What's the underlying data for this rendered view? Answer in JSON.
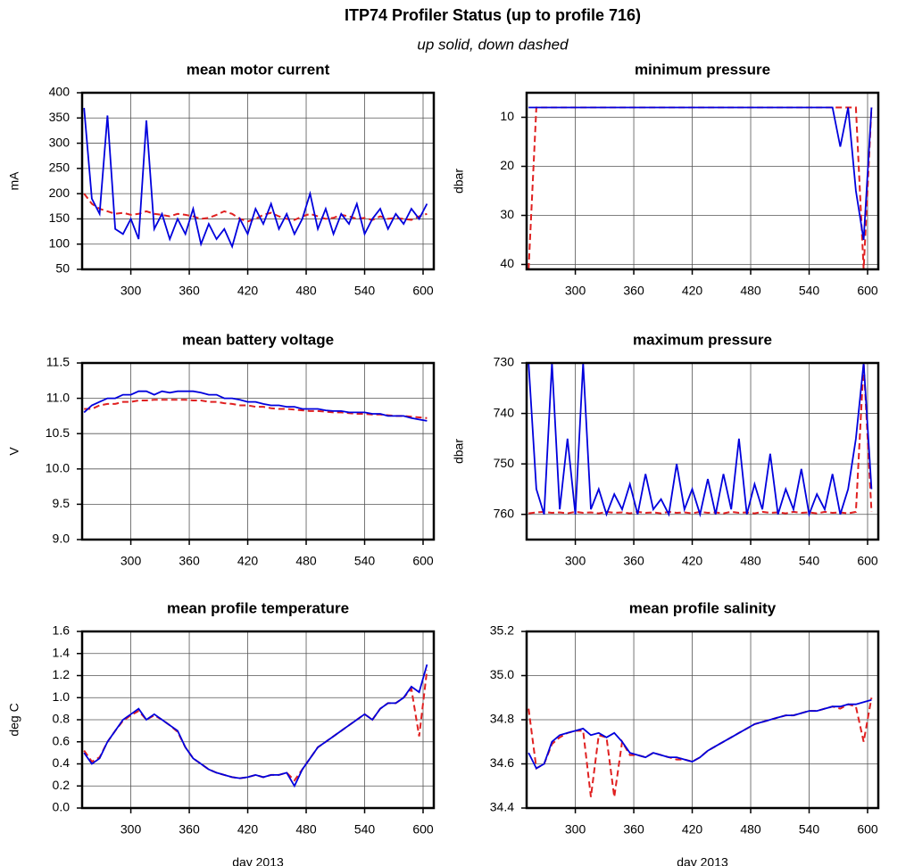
{
  "title": "ITP74 Profiler Status (up to profile 716)",
  "subtitle": "up solid, down dashed",
  "chart_data": [
    {
      "type": "line",
      "title": "mean motor current",
      "y_label": "mA",
      "x": [
        252,
        260,
        268,
        276,
        284,
        292,
        300,
        308,
        316,
        324,
        332,
        340,
        348,
        356,
        364,
        372,
        380,
        388,
        396,
        404,
        412,
        420,
        428,
        436,
        444,
        452,
        460,
        468,
        476,
        484,
        492,
        500,
        508,
        516,
        524,
        532,
        540,
        548,
        556,
        564,
        572,
        580,
        588,
        596,
        604
      ],
      "xlim": [
        250,
        611
      ],
      "xticks": [
        300,
        360,
        420,
        480,
        540,
        600
      ],
      "ylim": [
        50,
        400
      ],
      "yticks": [
        50,
        100,
        150,
        200,
        250,
        300,
        350,
        400
      ],
      "grid": true,
      "series": [
        {
          "color": "#0000dd",
          "dashed": false,
          "values": [
            370,
            190,
            160,
            355,
            130,
            120,
            150,
            110,
            345,
            130,
            160,
            110,
            150,
            120,
            170,
            100,
            140,
            110,
            130,
            95,
            150,
            120,
            170,
            140,
            180,
            130,
            160,
            120,
            150,
            200,
            130,
            170,
            120,
            160,
            140,
            180,
            120,
            150,
            170,
            130,
            160,
            140,
            170,
            150,
            180
          ]
        },
        {
          "color": "#e02020",
          "dashed": true,
          "values": [
            200,
            180,
            170,
            165,
            160,
            162,
            158,
            160,
            165,
            160,
            158,
            155,
            160,
            158,
            155,
            150,
            152,
            158,
            165,
            160,
            150,
            145,
            150,
            158,
            162,
            155,
            150,
            148,
            155,
            160,
            155,
            150,
            152,
            158,
            155,
            150,
            152,
            148,
            155,
            150,
            152,
            150,
            148,
            155,
            160
          ]
        }
      ]
    },
    {
      "type": "line",
      "title": "minimum pressure",
      "y_label": "dbar",
      "x": [
        252,
        260,
        268,
        276,
        284,
        292,
        300,
        308,
        316,
        324,
        332,
        340,
        348,
        356,
        364,
        372,
        380,
        388,
        396,
        404,
        412,
        420,
        428,
        436,
        444,
        452,
        460,
        468,
        476,
        484,
        492,
        500,
        508,
        516,
        524,
        532,
        540,
        548,
        556,
        564,
        572,
        580,
        588,
        596,
        604
      ],
      "xlim": [
        250,
        611
      ],
      "xticks": [
        300,
        360,
        420,
        480,
        540,
        600
      ],
      "ylim": [
        41,
        5
      ],
      "yticks": [
        10,
        20,
        30,
        40
      ],
      "grid": true,
      "series": [
        {
          "color": "#0000dd",
          "dashed": false,
          "values": [
            8,
            8,
            8,
            8,
            8,
            8,
            8,
            8,
            8,
            8,
            8,
            8,
            8,
            8,
            8,
            8,
            8,
            8,
            8,
            8,
            8,
            8,
            8,
            8,
            8,
            8,
            8,
            8,
            8,
            8,
            8,
            8,
            8,
            8,
            8,
            8,
            8,
            8,
            8,
            8,
            16,
            8,
            25,
            35,
            8
          ]
        },
        {
          "color": "#e02020",
          "dashed": true,
          "values": [
            41,
            8,
            8,
            8,
            8,
            8,
            8,
            8,
            8,
            8,
            8,
            8,
            8,
            8,
            8,
            8,
            8,
            8,
            8,
            8,
            8,
            8,
            8,
            8,
            8,
            8,
            8,
            8,
            8,
            8,
            8,
            8,
            8,
            8,
            8,
            8,
            8,
            8,
            8,
            8,
            8,
            8,
            8,
            41,
            8
          ]
        }
      ]
    },
    {
      "type": "line",
      "title": "mean battery voltage",
      "y_label": "V",
      "x": [
        252,
        260,
        268,
        276,
        284,
        292,
        300,
        308,
        316,
        324,
        332,
        340,
        348,
        356,
        364,
        372,
        380,
        388,
        396,
        404,
        412,
        420,
        428,
        436,
        444,
        452,
        460,
        468,
        476,
        484,
        492,
        500,
        508,
        516,
        524,
        532,
        540,
        548,
        556,
        564,
        572,
        580,
        588,
        596,
        604
      ],
      "xlim": [
        250,
        611
      ],
      "xticks": [
        300,
        360,
        420,
        480,
        540,
        600
      ],
      "ylim": [
        9,
        11.5
      ],
      "yticks": [
        {
          "value": 9,
          "label": "9.0"
        },
        9.5,
        {
          "value": 10,
          "label": "10.0"
        },
        10.5,
        {
          "value": 11,
          "label": "11.0"
        },
        11.5
      ],
      "grid": true,
      "series": [
        {
          "color": "#0000dd",
          "dashed": false,
          "values": [
            10.8,
            10.9,
            10.95,
            11.0,
            11.0,
            11.05,
            11.05,
            11.1,
            11.1,
            11.05,
            11.1,
            11.08,
            11.1,
            11.1,
            11.1,
            11.08,
            11.05,
            11.05,
            11.0,
            11.0,
            10.98,
            10.95,
            10.95,
            10.92,
            10.9,
            10.9,
            10.88,
            10.88,
            10.85,
            10.85,
            10.85,
            10.83,
            10.82,
            10.82,
            10.8,
            10.8,
            10.8,
            10.78,
            10.78,
            10.75,
            10.75,
            10.75,
            10.72,
            10.7,
            10.68
          ]
        },
        {
          "color": "#e02020",
          "dashed": true,
          "values": [
            10.85,
            10.85,
            10.9,
            10.92,
            10.92,
            10.95,
            10.95,
            10.97,
            10.97,
            10.98,
            10.98,
            10.98,
            10.98,
            10.98,
            10.97,
            10.97,
            10.95,
            10.95,
            10.93,
            10.92,
            10.9,
            10.9,
            10.88,
            10.88,
            10.86,
            10.85,
            10.85,
            10.84,
            10.83,
            10.82,
            10.82,
            10.81,
            10.8,
            10.8,
            10.79,
            10.78,
            10.78,
            10.77,
            10.77,
            10.76,
            10.75,
            10.75,
            10.74,
            10.73,
            10.72
          ]
        }
      ]
    },
    {
      "type": "line",
      "title": "maximum pressure",
      "y_label": "dbar",
      "x": [
        252,
        260,
        268,
        276,
        284,
        292,
        300,
        308,
        316,
        324,
        332,
        340,
        348,
        356,
        364,
        372,
        380,
        388,
        396,
        404,
        412,
        420,
        428,
        436,
        444,
        452,
        460,
        468,
        476,
        484,
        492,
        500,
        508,
        516,
        524,
        532,
        540,
        548,
        556,
        564,
        572,
        580,
        588,
        596,
        604
      ],
      "xlim": [
        250,
        611
      ],
      "xticks": [
        300,
        360,
        420,
        480,
        540,
        600
      ],
      "ylim": [
        765,
        730
      ],
      "yticks": [
        730,
        740,
        750,
        760
      ],
      "grid": true,
      "series": [
        {
          "color": "#0000dd",
          "dashed": false,
          "values": [
            730,
            755,
            760,
            730,
            759,
            745,
            760,
            730,
            759,
            755,
            760,
            756,
            759,
            754,
            760,
            752,
            759,
            757,
            760,
            750,
            759,
            755,
            760,
            753,
            760,
            752,
            759,
            745,
            760,
            754,
            759,
            748,
            760,
            755,
            759,
            751,
            760,
            756,
            759,
            752,
            760,
            755,
            745,
            730,
            755
          ]
        },
        {
          "color": "#e02020",
          "dashed": true,
          "values": [
            759.8,
            759.6,
            759.5,
            759.7,
            759.6,
            759.8,
            759.5,
            759.7,
            759.6,
            759.8,
            759.5,
            759.7,
            759.6,
            759.8,
            759.5,
            759.7,
            759.6,
            759.8,
            759.5,
            759.7,
            759.6,
            759.8,
            759.5,
            759.7,
            759.6,
            759.8,
            759.5,
            759.7,
            759.6,
            759.8,
            759.5,
            759.7,
            759.6,
            759.8,
            759.5,
            759.7,
            759.6,
            759.8,
            759.5,
            759.7,
            759.6,
            759.8,
            759.5,
            730,
            759.5
          ]
        }
      ]
    },
    {
      "type": "line",
      "title": "mean profile temperature",
      "y_label": "deg C",
      "x_label": "day 2013",
      "x": [
        252,
        260,
        268,
        276,
        284,
        292,
        300,
        308,
        316,
        324,
        332,
        340,
        348,
        356,
        364,
        372,
        380,
        388,
        396,
        404,
        412,
        420,
        428,
        436,
        444,
        452,
        460,
        468,
        476,
        484,
        492,
        500,
        508,
        516,
        524,
        532,
        540,
        548,
        556,
        564,
        572,
        580,
        588,
        596,
        604
      ],
      "xlim": [
        250,
        611
      ],
      "xticks": [
        300,
        360,
        420,
        480,
        540,
        600
      ],
      "ylim": [
        0,
        1.6
      ],
      "yticks": [
        {
          "value": 0,
          "label": "0.0"
        },
        0.2,
        0.4,
        0.6,
        0.8,
        {
          "value": 1,
          "label": "1.0"
        },
        1.2,
        1.4,
        1.6
      ],
      "grid": true,
      "series": [
        {
          "color": "#0000dd",
          "dashed": false,
          "values": [
            0.5,
            0.4,
            0.45,
            0.6,
            0.7,
            0.8,
            0.85,
            0.9,
            0.8,
            0.85,
            0.8,
            0.75,
            0.7,
            0.55,
            0.45,
            0.4,
            0.35,
            0.32,
            0.3,
            0.28,
            0.27,
            0.28,
            0.3,
            0.28,
            0.3,
            0.3,
            0.32,
            0.2,
            0.35,
            0.45,
            0.55,
            0.6,
            0.65,
            0.7,
            0.75,
            0.8,
            0.85,
            0.8,
            0.9,
            0.95,
            0.95,
            1.0,
            1.1,
            1.05,
            1.3
          ]
        },
        {
          "color": "#e02020",
          "dashed": true,
          "values": [
            0.52,
            0.42,
            0.46,
            0.6,
            0.7,
            0.79,
            0.84,
            0.88,
            0.8,
            0.84,
            0.8,
            0.75,
            0.69,
            0.55,
            0.45,
            0.4,
            0.35,
            0.32,
            0.3,
            0.28,
            0.27,
            0.28,
            0.3,
            0.28,
            0.3,
            0.3,
            0.32,
            0.25,
            0.35,
            0.45,
            0.55,
            0.6,
            0.65,
            0.7,
            0.75,
            0.8,
            0.85,
            0.8,
            0.9,
            0.95,
            0.95,
            1.0,
            1.08,
            0.65,
            1.25
          ]
        }
      ]
    },
    {
      "type": "line",
      "title": "mean profile salinity",
      "x_label": "day 2013",
      "x": [
        252,
        260,
        268,
        276,
        284,
        292,
        300,
        308,
        316,
        324,
        332,
        340,
        348,
        356,
        364,
        372,
        380,
        388,
        396,
        404,
        412,
        420,
        428,
        436,
        444,
        452,
        460,
        468,
        476,
        484,
        492,
        500,
        508,
        516,
        524,
        532,
        540,
        548,
        556,
        564,
        572,
        580,
        588,
        596,
        604
      ],
      "xlim": [
        250,
        611
      ],
      "xticks": [
        300,
        360,
        420,
        480,
        540,
        600
      ],
      "ylim": [
        34.4,
        35.2
      ],
      "yticks": [
        34.4,
        34.6,
        34.8,
        {
          "value": 35,
          "label": "35.0"
        },
        35.2
      ],
      "grid": true,
      "series": [
        {
          "color": "#0000dd",
          "dashed": false,
          "values": [
            34.65,
            34.58,
            34.6,
            34.7,
            34.73,
            34.74,
            34.75,
            34.76,
            34.73,
            34.74,
            34.72,
            34.74,
            34.7,
            34.65,
            34.64,
            34.63,
            34.65,
            34.64,
            34.63,
            34.63,
            34.62,
            34.61,
            34.63,
            34.66,
            34.68,
            34.7,
            34.72,
            34.74,
            34.76,
            34.78,
            34.79,
            34.8,
            34.81,
            34.82,
            34.82,
            34.83,
            34.84,
            34.84,
            34.85,
            34.86,
            34.86,
            34.87,
            34.87,
            34.88,
            34.89
          ]
        },
        {
          "color": "#e02020",
          "dashed": true,
          "values": [
            34.85,
            34.58,
            34.6,
            34.69,
            34.72,
            34.74,
            34.75,
            34.75,
            34.45,
            34.73,
            34.72,
            34.45,
            34.7,
            34.64,
            34.64,
            34.63,
            34.65,
            34.64,
            34.63,
            34.62,
            34.62,
            34.61,
            34.63,
            34.66,
            34.68,
            34.7,
            34.72,
            34.74,
            34.76,
            34.78,
            34.79,
            34.8,
            34.81,
            34.82,
            34.82,
            34.83,
            34.84,
            34.84,
            34.85,
            34.86,
            34.85,
            34.87,
            34.86,
            34.7,
            34.9
          ]
        }
      ]
    }
  ]
}
